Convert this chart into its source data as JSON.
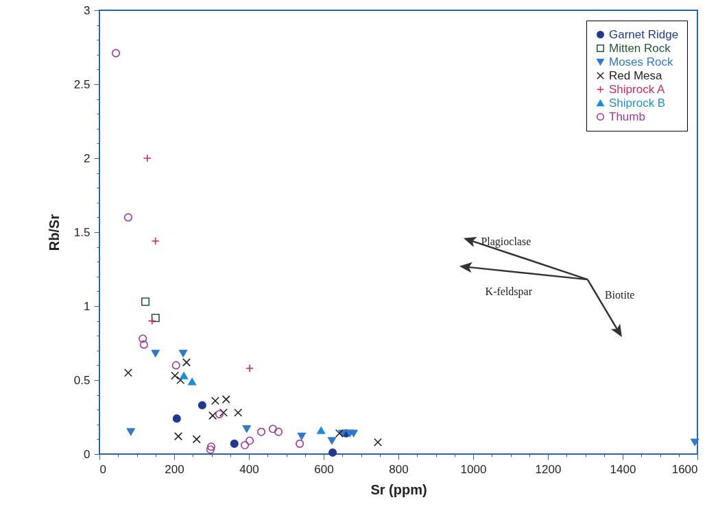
{
  "chart_data": {
    "type": "scatter",
    "xlabel": "Sr  (ppm)",
    "ylabel": "Rb/Sr",
    "xlim": [
      0,
      1600
    ],
    "ylim": [
      0,
      3
    ],
    "xticks": [
      0,
      {
        "value": 50,
        "label": null
      },
      {
        "value": 100,
        "label": null
      },
      {
        "value": 150,
        "label": null
      },
      200,
      {
        "value": 250,
        "label": null
      },
      {
        "value": 300,
        "label": null
      },
      {
        "value": 350,
        "label": null
      },
      400,
      {
        "value": 450,
        "label": null
      },
      {
        "value": 500,
        "label": null
      },
      {
        "value": 550,
        "label": null
      },
      600,
      {
        "value": 650,
        "label": null
      },
      {
        "value": 700,
        "label": null
      },
      {
        "value": 750,
        "label": null
      },
      800,
      {
        "value": 850,
        "label": null
      },
      {
        "value": 900,
        "label": null
      },
      {
        "value": 950,
        "label": null
      },
      1000,
      {
        "value": 1050,
        "label": null
      },
      {
        "value": 1100,
        "label": null
      },
      {
        "value": 1150,
        "label": null
      },
      1200,
      {
        "value": 1250,
        "label": null
      },
      {
        "value": 1300,
        "label": null
      },
      {
        "value": 1350,
        "label": null
      },
      1400,
      {
        "value": 1450,
        "label": null
      },
      {
        "value": 1500,
        "label": null
      },
      {
        "value": 1550,
        "label": null
      },
      1600
    ],
    "yticks": [
      0,
      {
        "value": 0.1,
        "label": null
      },
      {
        "value": 0.2,
        "label": null
      },
      {
        "value": 0.3,
        "label": null
      },
      {
        "value": 0.4,
        "label": null
      },
      0.5,
      {
        "value": 0.6,
        "label": null
      },
      {
        "value": 0.7,
        "label": null
      },
      {
        "value": 0.8,
        "label": null
      },
      {
        "value": 0.9,
        "label": null
      },
      1,
      {
        "value": 1.1,
        "label": null
      },
      {
        "value": 1.2,
        "label": null
      },
      {
        "value": 1.3,
        "label": null
      },
      {
        "value": 1.4,
        "label": null
      },
      1.5,
      {
        "value": 1.6,
        "label": null
      },
      {
        "value": 1.7,
        "label": null
      },
      {
        "value": 1.8,
        "label": null
      },
      {
        "value": 1.9,
        "label": null
      },
      2,
      {
        "value": 2.1,
        "label": null
      },
      {
        "value": 2.2,
        "label": null
      },
      {
        "value": 2.3,
        "label": null
      },
      {
        "value": 2.4,
        "label": null
      },
      2.5,
      {
        "value": 2.6,
        "label": null
      },
      {
        "value": 2.7,
        "label": null
      },
      {
        "value": 2.8,
        "label": null
      },
      {
        "value": 2.9,
        "label": null
      },
      3
    ],
    "grid": false,
    "legend": "top right",
    "series": [
      {
        "name": "Garnet Ridge",
        "color": "#1f3a93",
        "marker": "circle",
        "x": [
          275,
          207,
          361,
          624,
          660
        ],
        "values": [
          0.33,
          0.24,
          0.07,
          0.01,
          0.14
        ]
      },
      {
        "name": "Mitten Rock",
        "color": "#1e5b3a",
        "marker": "square-open",
        "x": [
          123,
          150
        ],
        "values": [
          1.03,
          0.92
        ]
      },
      {
        "name": "Moses Rock",
        "color": "#2b7bd0",
        "marker": "triangle-down",
        "x": [
          150,
          224,
          84,
          394,
          541,
          622,
          650,
          670,
          680,
          1593
        ],
        "values": [
          0.68,
          0.68,
          0.15,
          0.17,
          0.12,
          0.09,
          0.14,
          0.14,
          0.14,
          0.08
        ]
      },
      {
        "name": "Red Mesa",
        "color": "#222222",
        "marker": "x",
        "x": [
          77,
          233,
          202,
          217,
          211,
          260,
          310,
          339,
          303,
          332,
          371,
          642,
          745
        ],
        "values": [
          0.55,
          0.62,
          0.53,
          0.5,
          0.12,
          0.1,
          0.36,
          0.37,
          0.26,
          0.28,
          0.28,
          0.14,
          0.08
        ]
      },
      {
        "name": "Shiprock  A",
        "color": "#d0285a",
        "marker": "cross",
        "x": [
          128,
          150,
          141,
          402
        ],
        "values": [
          2.0,
          1.44,
          0.9,
          0.58
        ]
      },
      {
        "name": "Shiprock  B",
        "color": "#1a8fd8",
        "marker": "triangle",
        "x": [
          226,
          248,
          593
        ],
        "values": [
          0.53,
          0.49,
          0.16
        ]
      },
      {
        "name": "Thumb",
        "color": "#a0359a",
        "marker": "circle-open",
        "x": [
          44,
          77,
          116,
          119,
          205,
          299,
          297,
          321,
          389,
          402,
          433,
          464,
          479,
          536
        ],
        "values": [
          2.71,
          1.6,
          0.78,
          0.74,
          0.6,
          0.05,
          0.03,
          0.27,
          0.06,
          0.09,
          0.15,
          0.17,
          0.15,
          0.07
        ]
      }
    ],
    "annotations": [
      "Plagioclase",
      "K-feldspar",
      "Biotite"
    ]
  }
}
